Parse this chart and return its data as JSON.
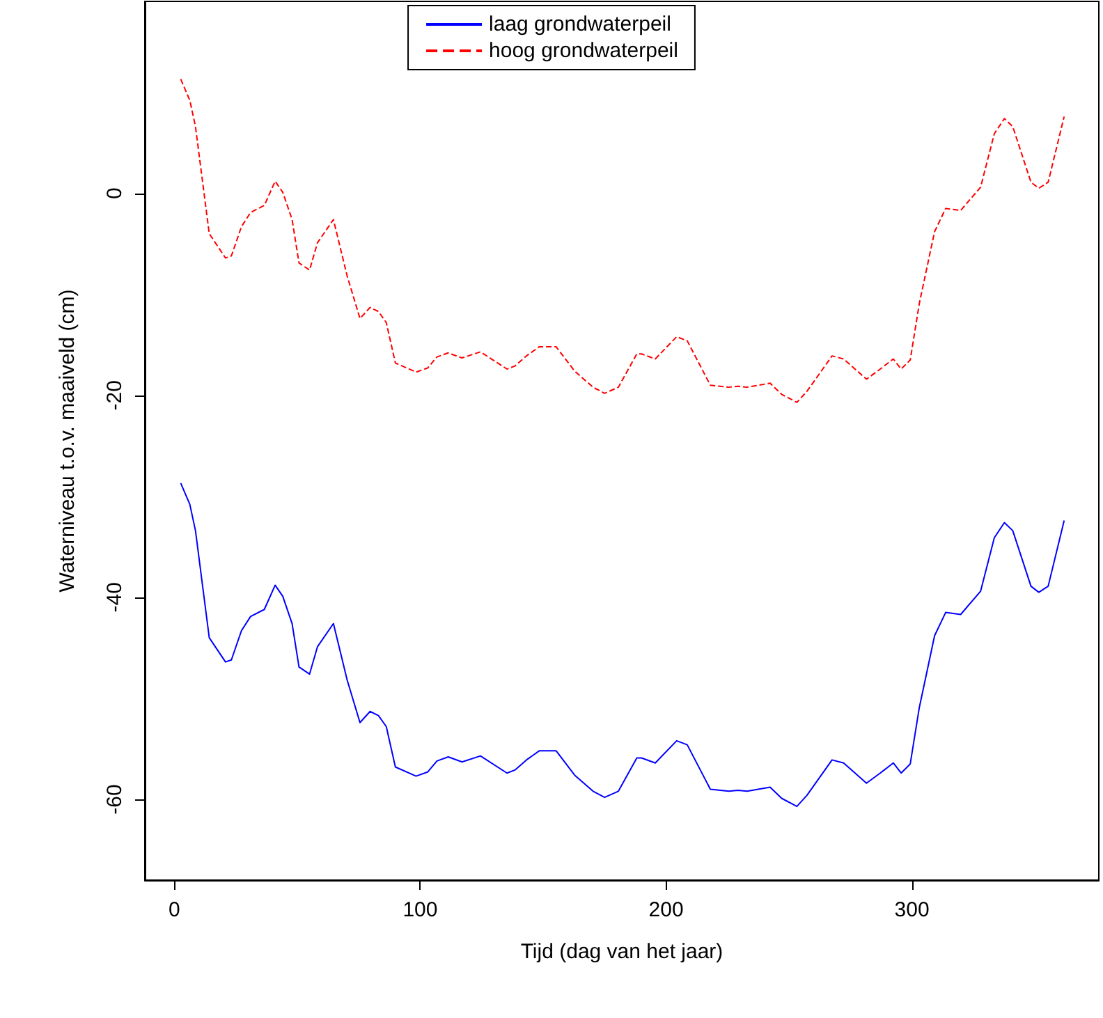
{
  "chart_data": {
    "type": "line",
    "xlabel": "Tijd (dag van het jaar)",
    "ylabel": "Waterniveau t.o.v. maaiveld (cm)",
    "xlim": [
      -12,
      376
    ],
    "xticks": [
      0,
      100,
      200,
      300
    ],
    "ylim": [
      -68,
      19
    ],
    "yticks": [
      -60,
      -40,
      -20,
      0
    ],
    "grid": false,
    "legend": "top",
    "marker": "none",
    "x": [
      2.6,
      6.3,
      8.6,
      14.2,
      20.8,
      23.2,
      27.3,
      31,
      36.6,
      41,
      44.1,
      47.9,
      50.7,
      55,
      58.2,
      64.7,
      70.3,
      75.5,
      79.6,
      83,
      86.2,
      89.9,
      98.3,
      103,
      106.8,
      111.4,
      117,
      124.5,
      135.3,
      138.5,
      143.2,
      148.4,
      155.3,
      162.8,
      170.3,
      175,
      180.6,
      188.1,
      190,
      195.6,
      204.3,
      208.6,
      218,
      225.5,
      229.2,
      233,
      242.3,
      247,
      253.2,
      257.3,
      267.5,
      272.2,
      281.5,
      287.1,
      292.4,
      295.6,
      299.3,
      303,
      309.2,
      313.7,
      319.8,
      327.9,
      333.5,
      337.6,
      341,
      348.4,
      351.6,
      355.4,
      361.9
    ],
    "series": [
      {
        "name": "laag grondwaterpeil",
        "color": "#0000ff",
        "line_style": "solid",
        "values": [
          -28.7,
          -30.8,
          -33.4,
          -44.0,
          -46.4,
          -46.2,
          -43.3,
          -41.9,
          -41.2,
          -38.8,
          -39.9,
          -42.6,
          -46.9,
          -47.6,
          -44.9,
          -42.6,
          -48.2,
          -52.4,
          -51.3,
          -51.7,
          -52.8,
          -56.8,
          -57.7,
          -57.3,
          -56.2,
          -55.8,
          -56.3,
          -55.7,
          -57.4,
          -57.1,
          -56.1,
          -55.2,
          -55.2,
          -57.6,
          -59.2,
          -59.8,
          -59.2,
          -55.9,
          -55.9,
          -56.4,
          -54.2,
          -54.6,
          -59.0,
          -59.2,
          -59.1,
          -59.2,
          -58.8,
          -59.9,
          -60.7,
          -59.6,
          -56.1,
          -56.4,
          -58.4,
          -57.4,
          -56.4,
          -57.4,
          -56.5,
          -50.9,
          -43.8,
          -41.5,
          -41.7,
          -39.4,
          -34.1,
          -32.6,
          -33.4,
          -38.9,
          -39.5,
          -38.9,
          -32.4
        ]
      },
      {
        "name": "hoog grondwaterpeil",
        "color": "#ff0000",
        "line_style": "dashed",
        "values": [
          11.3,
          9.2,
          6.6,
          -4.0,
          -6.4,
          -6.2,
          -3.3,
          -1.9,
          -1.2,
          1.2,
          0.1,
          -2.6,
          -6.9,
          -7.6,
          -4.9,
          -2.6,
          -8.2,
          -12.4,
          -11.3,
          -11.7,
          -12.8,
          -16.8,
          -17.7,
          -17.3,
          -16.2,
          -15.8,
          -16.3,
          -15.7,
          -17.4,
          -17.1,
          -16.1,
          -15.2,
          -15.2,
          -17.6,
          -19.2,
          -19.8,
          -19.2,
          -15.9,
          -15.9,
          -16.4,
          -14.2,
          -14.6,
          -19.0,
          -19.2,
          -19.1,
          -19.2,
          -18.8,
          -19.9,
          -20.7,
          -19.6,
          -16.1,
          -16.4,
          -18.4,
          -17.4,
          -16.4,
          -17.4,
          -16.5,
          -10.9,
          -3.8,
          -1.5,
          -1.7,
          0.6,
          5.9,
          7.4,
          6.6,
          1.1,
          0.5,
          1.1,
          7.6
        ]
      }
    ]
  }
}
